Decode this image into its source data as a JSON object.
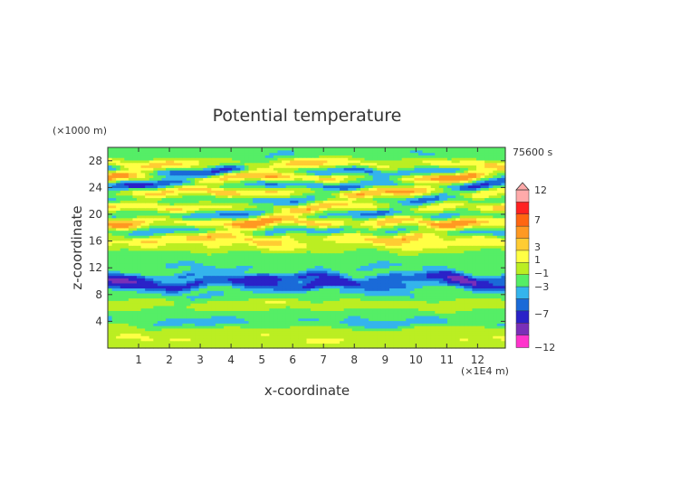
{
  "chart_data": {
    "type": "heatmap",
    "title": "Potential temperature",
    "xlabel": "x-coordinate",
    "ylabel": "z-coordinate",
    "x_unit": "(×1E4 m)",
    "y_unit": "(×1000 m)",
    "time_label": "75600 s",
    "xlim": [
      0,
      12.9
    ],
    "ylim": [
      0,
      30
    ],
    "x_ticks": [
      "1",
      "2",
      "3",
      "4",
      "5",
      "6",
      "7",
      "8",
      "9",
      "10",
      "11",
      "12"
    ],
    "y_ticks": [
      "4",
      "8",
      "12",
      "16",
      "20",
      "24",
      "28"
    ],
    "colorbar": {
      "labels": [
        "12",
        "7",
        "3",
        "1",
        "−1",
        "−3",
        "−7",
        "−12"
      ],
      "levels": [
        -12,
        -7,
        -5,
        -3,
        -2,
        -1,
        0,
        1,
        2,
        3,
        5,
        7,
        12
      ],
      "colors": [
        "#ff33cc",
        "#7a2fb8",
        "#2a22c8",
        "#1a6ad8",
        "#34b4ec",
        "#55ee66",
        "#bbee22",
        "#ffff44",
        "#ffcc33",
        "#ff9922",
        "#ff6611",
        "#ff2222",
        "#ffaaaa"
      ]
    },
    "bands": [
      {
        "z": 1.3,
        "amp": 1.0
      },
      {
        "z": 2.8,
        "amp": 0.8
      },
      {
        "z": 3.8,
        "amp": -1.6
      },
      {
        "z": 5.2,
        "amp": -0.7
      },
      {
        "z": 6.5,
        "amp": 0.9
      },
      {
        "z": 8.0,
        "amp": -1.0
      },
      {
        "z": 9.5,
        "amp": -3.4
      },
      {
        "z": 10.6,
        "amp": -3.2
      },
      {
        "z": 12.2,
        "amp": -1.1
      },
      {
        "z": 13.8,
        "amp": -0.4
      },
      {
        "z": 15.5,
        "amp": 1.3
      },
      {
        "z": 16.6,
        "amp": 2.4
      },
      {
        "z": 17.5,
        "amp": -1.8
      },
      {
        "z": 18.9,
        "amp": 3.6
      },
      {
        "z": 20.0,
        "amp": -2.2
      },
      {
        "z": 21.2,
        "amp": 2.6
      },
      {
        "z": 22.1,
        "amp": -2.0
      },
      {
        "z": 23.5,
        "amp": 3.2
      },
      {
        "z": 24.4,
        "amp": -3.0
      },
      {
        "z": 25.7,
        "amp": 4.0
      },
      {
        "z": 26.3,
        "amp": -3.6
      },
      {
        "z": 27.6,
        "amp": 2.2
      },
      {
        "z": 28.8,
        "amp": -1.0
      }
    ]
  }
}
